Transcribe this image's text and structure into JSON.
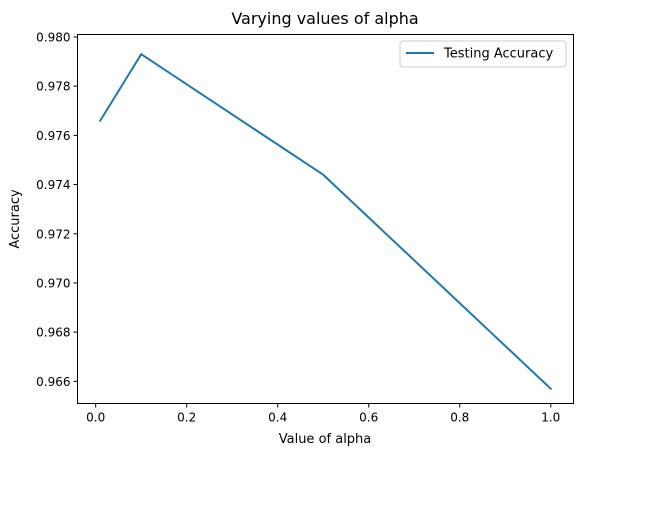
{
  "chart_data": {
    "type": "line",
    "title": "Varying values of alpha",
    "xlabel": "Value of alpha",
    "ylabel": "Accuracy",
    "xlim": [
      -0.04,
      1.05
    ],
    "ylim": [
      0.9651,
      0.9801
    ],
    "xticks": [
      0.0,
      0.2,
      0.4,
      0.6,
      0.8,
      1.0
    ],
    "xtick_labels": [
      "0.0",
      "0.2",
      "0.4",
      "0.6",
      "0.8",
      "1.0"
    ],
    "yticks": [
      0.966,
      0.968,
      0.97,
      0.972,
      0.974,
      0.976,
      0.978,
      0.98
    ],
    "ytick_labels": [
      "0.966",
      "0.968",
      "0.970",
      "0.972",
      "0.974",
      "0.976",
      "0.978",
      "0.980"
    ],
    "grid": false,
    "legend_position": "top-right",
    "series": [
      {
        "name": "Testing Accuracy",
        "color": "#1f77b4",
        "x": [
          0.01,
          0.1,
          0.5,
          1.0
        ],
        "y": [
          0.9766,
          0.9793,
          0.9744,
          0.9657
        ]
      }
    ]
  }
}
